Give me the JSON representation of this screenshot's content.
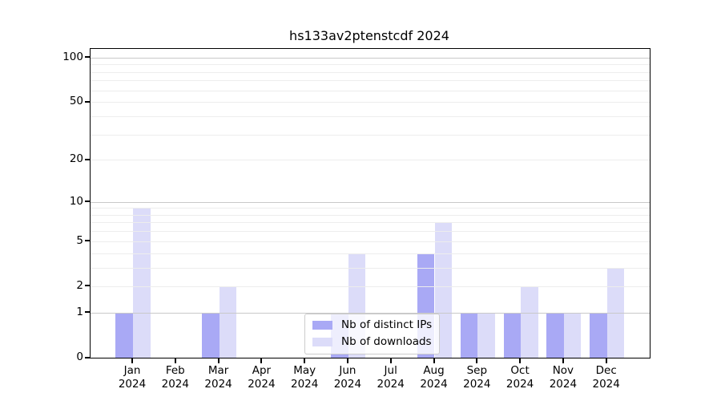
{
  "chart_data": {
    "type": "bar",
    "title": "hs133av2ptenstcdf 2024",
    "x_tick_labels": [
      {
        "line1": "Jan",
        "line2": "2024"
      },
      {
        "line1": "Feb",
        "line2": "2024"
      },
      {
        "line1": "Mar",
        "line2": "2024"
      },
      {
        "line1": "Apr",
        "line2": "2024"
      },
      {
        "line1": "May",
        "line2": "2024"
      },
      {
        "line1": "Jun",
        "line2": "2024"
      },
      {
        "line1": "Jul",
        "line2": "2024"
      },
      {
        "line1": "Aug",
        "line2": "2024"
      },
      {
        "line1": "Sep",
        "line2": "2024"
      },
      {
        "line1": "Oct",
        "line2": "2024"
      },
      {
        "line1": "Nov",
        "line2": "2024"
      },
      {
        "line1": "Dec",
        "line2": "2024"
      }
    ],
    "series": [
      {
        "name": "Nb of distinct IPs",
        "color": "#a9a9f5",
        "values": [
          1,
          0,
          1,
          0,
          0,
          1,
          0,
          4,
          1,
          1,
          1,
          1
        ]
      },
      {
        "name": "Nb of downloads",
        "color": "#dcdcf9",
        "values": [
          9,
          0,
          2,
          0,
          0,
          4,
          0,
          7,
          1,
          2,
          1,
          3
        ]
      }
    ],
    "y_ticks": [
      {
        "value": 0,
        "label": "0"
      },
      {
        "value": 1,
        "label": "1"
      },
      {
        "value": 2,
        "label": "2"
      },
      {
        "value": 5,
        "label": "5"
      },
      {
        "value": 10,
        "label": "10"
      },
      {
        "value": 20,
        "label": "20"
      },
      {
        "value": 50,
        "label": "50"
      },
      {
        "value": 100,
        "label": "100"
      }
    ],
    "y_scale": "log1p",
    "ylim": [
      0,
      113
    ],
    "grid": {
      "dark_values": [
        1,
        10,
        100
      ],
      "light_values": [
        2,
        3,
        4,
        5,
        6,
        7,
        8,
        9,
        20,
        30,
        40,
        50,
        60,
        70,
        80,
        90
      ]
    },
    "legend_position": "lower center inside plot",
    "colors": {
      "dark_grid": "#c9c9c9",
      "light_grid": "#ededed",
      "spine": "#000000",
      "text": "#000000",
      "background": "#ffffff"
    }
  }
}
